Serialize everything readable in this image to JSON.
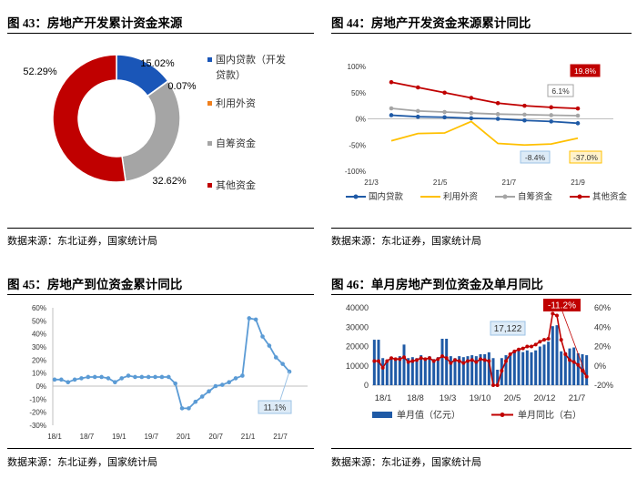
{
  "panels": {
    "p43": {
      "title": "图 43：房地产开发累计资金来源",
      "source": "数据来源：东北证券，国家统计局"
    },
    "p44": {
      "title": "图 44：房地产开发资金来源累计同比",
      "source": "数据来源：东北证券，国家统计局"
    },
    "p45": {
      "title": "图 45：房地产到位资金累计同比",
      "source": "数据来源：东北证券，国家统计局"
    },
    "p46": {
      "title": "图 46：单月房地产到位资金及单月同比",
      "source": "数据来源：东北证券，国家统计局"
    }
  },
  "chart_data": [
    {
      "id": "fig43",
      "type": "pie",
      "donut": true,
      "slices": [
        {
          "name": "国内贷款（开发贷款）",
          "value": 15.02,
          "label": "15.02%",
          "color": "#1a56b8"
        },
        {
          "name": "利用外资",
          "value": 0.07,
          "label": "0.07%",
          "color": "#f0801e"
        },
        {
          "name": "自筹资金",
          "value": 32.62,
          "label": "32.62%",
          "color": "#a5a5a5"
        },
        {
          "name": "其他资金",
          "value": 52.29,
          "label": "52.29%",
          "color": "#c00000"
        }
      ],
      "legend_position": "right"
    },
    {
      "id": "fig44",
      "type": "line",
      "x_ticks": [
        "21/3",
        "21/5",
        "21/7",
        "21/9"
      ],
      "y_ticks": [
        "100%",
        "50%",
        "0%",
        "-50%",
        "-100%"
      ],
      "ylim": [
        -100,
        100
      ],
      "series": [
        {
          "name": "国内贷款",
          "color": "#1f5aa6",
          "marker": true,
          "values": [
            7,
            4,
            3,
            1,
            0,
            -3,
            -5,
            -8.4
          ]
        },
        {
          "name": "利用外资",
          "color": "#ffc000",
          "marker": false,
          "values": [
            -42,
            -28,
            -27,
            -5,
            -47,
            -50,
            -48,
            -37
          ]
        },
        {
          "name": "自筹资金",
          "color": "#a5a5a5",
          "marker": true,
          "values": [
            20,
            15,
            13,
            11,
            9,
            8,
            7,
            6.1
          ]
        },
        {
          "name": "其他资金",
          "color": "#c00000",
          "marker": true,
          "values": [
            70,
            60,
            50,
            40,
            30,
            25,
            22,
            19.8
          ]
        }
      ],
      "annotations": [
        {
          "text": "19.8%",
          "series": "其他资金",
          "style": "red"
        },
        {
          "text": "6.1%",
          "series": "自筹资金",
          "style": "gray"
        },
        {
          "text": "-8.4%",
          "series": "国内贷款",
          "style": "blue"
        },
        {
          "text": "-37.0%",
          "series": "利用外资",
          "style": "yellow"
        }
      ],
      "legend_position": "bottom"
    },
    {
      "id": "fig45",
      "type": "line",
      "color": "#5b9bd5",
      "x_ticks": [
        "18/1",
        "18/7",
        "19/1",
        "19/7",
        "20/1",
        "20/7",
        "21/1",
        "21/7"
      ],
      "y_ticks": [
        "60%",
        "50%",
        "40%",
        "30%",
        "20%",
        "10%",
        "0%",
        "-10%",
        "-20%",
        "-30%"
      ],
      "ylim": [
        -30,
        60
      ],
      "values": [
        5,
        5,
        3,
        5,
        6,
        7,
        7,
        7,
        6,
        3,
        6,
        8,
        7,
        7,
        7,
        7,
        7,
        7,
        2,
        -17,
        -17,
        -12,
        -8,
        -4,
        0,
        1,
        3,
        6,
        8,
        52,
        51,
        38,
        31,
        22,
        17,
        11.1
      ],
      "annotation": "11.1%"
    },
    {
      "id": "fig46",
      "type": "bar+line",
      "x_ticks": [
        "18/1",
        "18/8",
        "19/3",
        "19/10",
        "20/5",
        "20/12",
        "21/7"
      ],
      "y_left_ticks": [
        "40000",
        "30000",
        "20000",
        "10000",
        "0"
      ],
      "ylim_left": [
        0,
        40000
      ],
      "y_right_ticks": [
        "60%",
        "40%",
        "20%",
        "0%",
        "-20%"
      ],
      "ylim_right": [
        -20,
        60
      ],
      "bar_series": {
        "name": "单月值（亿元）",
        "color": "#1f5aa6",
        "values": [
          23500,
          23500,
          14000,
          12500,
          13500,
          14000,
          15000,
          21000,
          14000,
          14500,
          14000,
          15500,
          14000,
          15000,
          13500,
          14500,
          24000,
          24000,
          15000,
          14000,
          15000,
          14500,
          15000,
          15500,
          15000,
          16000,
          16000,
          17000,
          14000,
          8000,
          14000,
          15500,
          16000,
          17000,
          19000,
          17122,
          18000,
          17000,
          18000,
          20000,
          21000,
          22500,
          30500,
          31000,
          17500,
          17000,
          19000,
          19500,
          16500,
          16000,
          15500
        ]
      },
      "line_series": {
        "name": "单月同比（右）",
        "color": "#c00000",
        "values": [
          5,
          5,
          -2,
          5,
          8,
          7,
          7,
          9,
          4,
          5,
          6,
          8,
          7,
          8,
          5,
          7,
          10,
          8,
          3,
          6,
          5,
          3,
          5,
          6,
          4,
          7,
          6,
          5,
          -20,
          -20,
          -5,
          5,
          12,
          15,
          17,
          18,
          20,
          20,
          22,
          25,
          27,
          28,
          54,
          52,
          27,
          12,
          6,
          4,
          1,
          -5,
          -11.2
        ]
      },
      "annotations": [
        {
          "text": "-11.2%",
          "style": "red"
        },
        {
          "text": "17,122",
          "style": "blue"
        }
      ],
      "legend_position": "bottom"
    }
  ]
}
